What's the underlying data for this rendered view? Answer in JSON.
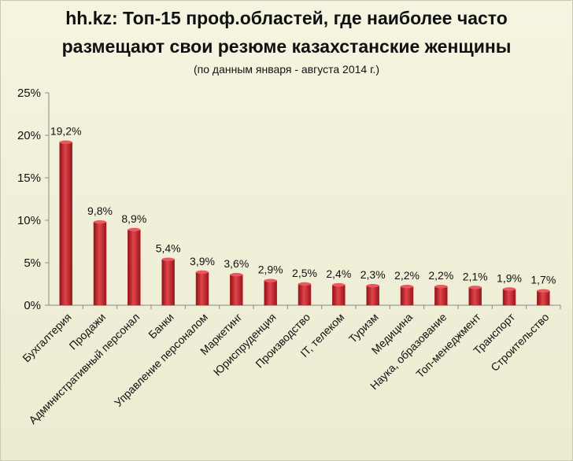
{
  "chart_data": {
    "type": "bar",
    "title": "hh.kz: Топ-15 проф.областей, где наиболее часто",
    "title_line2": "размещают свои резюме казахстанские  женщины",
    "subtitle": "(по данным января - августа 2014 г.)",
    "categories": [
      "Бухгалтерия",
      "Продажи",
      "Административный персонал",
      "Банки",
      "Управление персоналом",
      "Маркетинг",
      "Юриспруденция",
      "Производство",
      "IT, телеком",
      "Туризм",
      "Медицина",
      "Наука, образование",
      "Топ-менеджмент",
      "Транспорт",
      "Строительство"
    ],
    "values": [
      19.2,
      9.8,
      8.9,
      5.4,
      3.9,
      3.6,
      2.9,
      2.5,
      2.4,
      2.3,
      2.2,
      2.2,
      2.1,
      1.9,
      1.7
    ],
    "value_labels": [
      "19,2%",
      "9,8%",
      "8,9%",
      "5,4%",
      "3,9%",
      "3,6%",
      "2,9%",
      "2,5%",
      "2,4%",
      "2,3%",
      "2,2%",
      "2,2%",
      "2,1%",
      "1,9%",
      "1,7%"
    ],
    "y_ticks": [
      0,
      5,
      10,
      15,
      20,
      25
    ],
    "y_tick_labels": [
      "0%",
      "5%",
      "10%",
      "15%",
      "20%",
      "25%"
    ],
    "ylim": [
      0,
      25
    ],
    "xlabel": "",
    "ylabel": "",
    "bar_color": "#c0272d",
    "grid": false
  }
}
